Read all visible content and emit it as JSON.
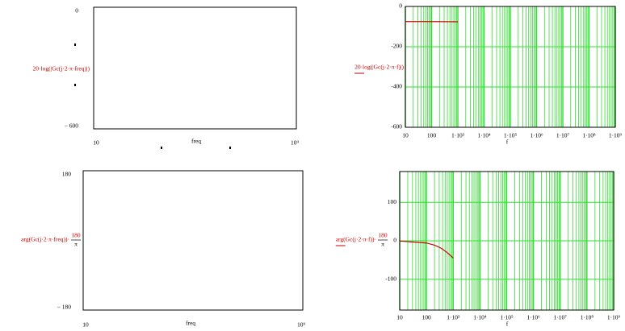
{
  "chart_data": [
    {
      "type": "line",
      "ylabel": "20·log(|Gc(j·2·π·freq)|)",
      "xlabel": "freq",
      "xlog": true,
      "xlim": [
        10,
        1000000000
      ],
      "xticks": [
        10,
        {
          "value": 1000000000,
          "label": "10⁹"
        }
      ],
      "ylim": [
        -600,
        0
      ],
      "yticks": [
        0,
        {
          "value": -600,
          "label": "− 600"
        }
      ],
      "grid": false,
      "series": []
    },
    {
      "type": "line",
      "ylabel": "20·log(|Gc(j·2·π·f)|)",
      "xlabel": "f",
      "xlog": true,
      "xlim": [
        10,
        1000000000
      ],
      "xticks": [
        10,
        100,
        {
          "value": 1000,
          "label": "1·10³"
        },
        {
          "value": 10000,
          "label": "1·10⁴"
        },
        {
          "value": 100000,
          "label": "1·10⁵"
        },
        {
          "value": 1000000,
          "label": "1·10⁶"
        },
        {
          "value": 10000000,
          "label": "1·10⁷"
        },
        {
          "value": 100000000,
          "label": "1·10⁸"
        },
        {
          "value": 1000000000,
          "label": "1·10⁹"
        }
      ],
      "ylim": [
        -600,
        0
      ],
      "yticks": [
        0,
        -200,
        -400,
        -600
      ],
      "grid": true,
      "grid_color": "#33dd33",
      "series": [
        {
          "color": "#cc0000",
          "x": [
            10,
            100,
            1000
          ],
          "values": [
            -75,
            -75,
            -76
          ]
        }
      ]
    },
    {
      "type": "line",
      "ylabel": "arg(Gc(j·2·π·freq))·",
      "ylabel_frac": {
        "num": "180",
        "den": "π"
      },
      "xlabel": "freq",
      "xlog": true,
      "xlim": [
        10,
        1000000000
      ],
      "xticks": [
        10,
        {
          "value": 1000000000,
          "label": "10⁹"
        }
      ],
      "ylim": [
        -180,
        180
      ],
      "yticks": [
        180,
        {
          "value": -180,
          "label": "− 180"
        }
      ],
      "grid": false,
      "series": []
    },
    {
      "type": "line",
      "ylabel": "arg(Gc(j·2·π·f))·",
      "ylabel_frac": {
        "num": "180",
        "den": "π"
      },
      "xlabel": "f",
      "xlog": true,
      "xlim": [
        10,
        1000000000
      ],
      "xticks": [
        10,
        100,
        {
          "value": 1000,
          "label": "1·10³"
        },
        {
          "value": 10000,
          "label": "1·10⁴"
        },
        {
          "value": 100000,
          "label": "1·10⁵"
        },
        {
          "value": 1000000,
          "label": "1·10⁶"
        },
        {
          "value": 10000000,
          "label": "1·10⁷"
        },
        {
          "value": 100000000,
          "label": "1·10⁸"
        },
        {
          "value": 1000000000,
          "label": "1·10⁹"
        }
      ],
      "ylim": [
        -180,
        180
      ],
      "yticks": [
        100,
        0,
        -100
      ],
      "grid": true,
      "grid_color": "#33dd33",
      "series": [
        {
          "color": "#cc0000",
          "x": [
            10,
            100,
            200,
            300,
            400,
            500,
            600,
            700,
            800,
            900,
            1000
          ],
          "values": [
            -0.6,
            -5.7,
            -11.3,
            -16.7,
            -21.8,
            -26.6,
            -31,
            -35,
            -38.7,
            -42,
            -45
          ]
        }
      ]
    }
  ]
}
